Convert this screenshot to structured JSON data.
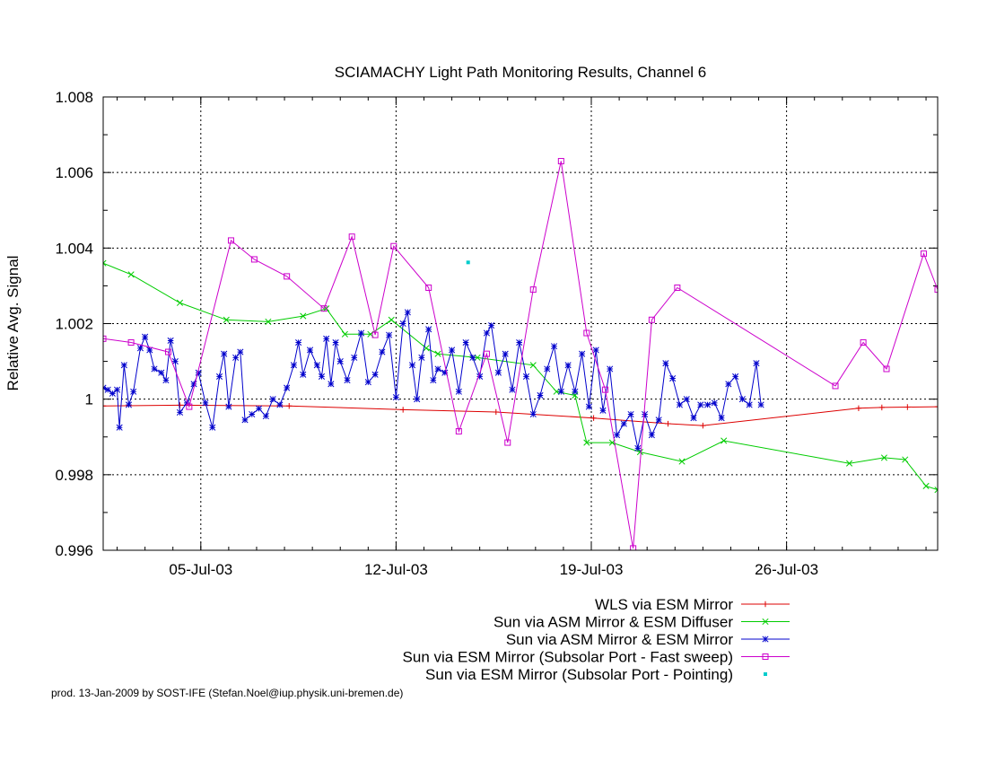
{
  "chart_data": {
    "type": "line",
    "title": "SCIAMACHY Light Path Monitoring Results, Channel 6",
    "xlabel": "",
    "ylabel": "Relative Avg. Signal",
    "x_unit": "date",
    "xlim": [
      "2003-07-01T12:00",
      "2003-07-31T10:00"
    ],
    "ylim": [
      0.996,
      1.008
    ],
    "x_ticks": [
      {
        "date": "2003-07-05",
        "label": "05-Jul-03"
      },
      {
        "date": "2003-07-12",
        "label": "12-Jul-03"
      },
      {
        "date": "2003-07-19",
        "label": "19-Jul-03"
      },
      {
        "date": "2003-07-26",
        "label": "26-Jul-03"
      }
    ],
    "y_ticks": [
      {
        "value": 0.996,
        "label": "0.996"
      },
      {
        "value": 0.998,
        "label": "0.998"
      },
      {
        "value": 1.0,
        "label": "1"
      },
      {
        "value": 1.002,
        "label": "1.002"
      },
      {
        "value": 1.004,
        "label": "1.004"
      },
      {
        "value": 1.006,
        "label": "1.006"
      },
      {
        "value": 1.008,
        "label": "1.008"
      }
    ],
    "grid": true,
    "legend_position": "below plot, right-aligned",
    "series": [
      {
        "name": "WLS via ESM Mirror",
        "color": "#dd0000",
        "marker": "plus",
        "points": [
          [
            "2003-07-01T12:00",
            0.99982
          ],
          [
            "2003-07-04T06:00",
            0.99984
          ],
          [
            "2003-07-08T04:00",
            0.99982
          ],
          [
            "2003-07-12T06:00",
            0.99972
          ],
          [
            "2003-07-15T14:00",
            0.99966
          ],
          [
            "2003-07-19T02:00",
            0.9995
          ],
          [
            "2003-07-21T18:00",
            0.99935
          ],
          [
            "2003-07-23T00:00",
            0.9993
          ],
          [
            "2003-07-28T14:00",
            0.99976
          ],
          [
            "2003-07-29T10:00",
            0.99978
          ],
          [
            "2003-07-30T08:00",
            0.99979
          ],
          [
            "2003-07-31T10:00",
            0.9998
          ]
        ]
      },
      {
        "name": "Sun via ASM Mirror & ESM Diffuser",
        "color": "#00cc00",
        "marker": "x",
        "points": [
          [
            "2003-07-01T12:00",
            1.0036
          ],
          [
            "2003-07-02T12:00",
            1.0033
          ],
          [
            "2003-07-04T06:00",
            1.00255
          ],
          [
            "2003-07-05T22:00",
            1.0021
          ],
          [
            "2003-07-07T10:00",
            1.00205
          ],
          [
            "2003-07-08T16:00",
            1.0022
          ],
          [
            "2003-07-09T12:00",
            1.0024
          ],
          [
            "2003-07-10T04:00",
            1.00172
          ],
          [
            "2003-07-11T02:00",
            1.00172
          ],
          [
            "2003-07-11T20:00",
            1.0021
          ],
          [
            "2003-07-13T02:00",
            1.00135
          ],
          [
            "2003-07-13T12:00",
            1.0012
          ],
          [
            "2003-07-14T22:00",
            1.0011
          ],
          [
            "2003-07-16T22:00",
            1.0009
          ],
          [
            "2003-07-17T18:00",
            1.0002
          ],
          [
            "2003-07-18T10:00",
            1.0001
          ],
          [
            "2003-07-18T20:00",
            0.99885
          ],
          [
            "2003-07-19T18:00",
            0.99885
          ],
          [
            "2003-07-20T18:00",
            0.9986
          ],
          [
            "2003-07-22T06:00",
            0.99835
          ],
          [
            "2003-07-23T18:00",
            0.9989
          ],
          [
            "2003-07-28T06:00",
            0.9983
          ],
          [
            "2003-07-29T12:00",
            0.99845
          ],
          [
            "2003-07-30T06:00",
            0.9984
          ],
          [
            "2003-07-31T00:00",
            0.9977
          ],
          [
            "2003-07-31T10:00",
            0.9976
          ]
        ]
      },
      {
        "name": "Sun via ASM Mirror & ESM Mirror",
        "color": "#0000cc",
        "marker": "star",
        "points": [
          [
            "2003-07-01T12:00",
            1.0003
          ],
          [
            "2003-07-01T16:00",
            1.00025
          ],
          [
            "2003-07-01T20:00",
            1.00015
          ],
          [
            "2003-07-02T00:00",
            1.00025
          ],
          [
            "2003-07-02T02:00",
            0.99925
          ],
          [
            "2003-07-02T06:00",
            1.0009
          ],
          [
            "2003-07-02T10:00",
            0.99985
          ],
          [
            "2003-07-02T14:00",
            1.0002
          ],
          [
            "2003-07-02T20:00",
            1.00135
          ],
          [
            "2003-07-03T00:00",
            1.00165
          ],
          [
            "2003-07-03T04:00",
            1.0013
          ],
          [
            "2003-07-03T08:00",
            1.0008
          ],
          [
            "2003-07-03T14:00",
            1.0007
          ],
          [
            "2003-07-03T18:00",
            1.0005
          ],
          [
            "2003-07-03T22:00",
            1.00155
          ],
          [
            "2003-07-04T02:00",
            1.001
          ],
          [
            "2003-07-04T06:00",
            0.99965
          ],
          [
            "2003-07-04T12:00",
            0.9999
          ],
          [
            "2003-07-04T18:00",
            1.0004
          ],
          [
            "2003-07-04T22:00",
            1.0007
          ],
          [
            "2003-07-05T04:00",
            0.9999
          ],
          [
            "2003-07-05T10:00",
            0.99925
          ],
          [
            "2003-07-05T16:00",
            1.0006
          ],
          [
            "2003-07-05T20:00",
            1.0012
          ],
          [
            "2003-07-06T00:00",
            0.9998
          ],
          [
            "2003-07-06T06:00",
            1.0011
          ],
          [
            "2003-07-06T10:00",
            1.00125
          ],
          [
            "2003-07-06T14:00",
            0.99945
          ],
          [
            "2003-07-06T20:00",
            0.9996
          ],
          [
            "2003-07-07T02:00",
            0.99975
          ],
          [
            "2003-07-07T08:00",
            0.99955
          ],
          [
            "2003-07-07T14:00",
            1.0
          ],
          [
            "2003-07-07T20:00",
            0.99985
          ],
          [
            "2003-07-08T02:00",
            1.0003
          ],
          [
            "2003-07-08T08:00",
            1.0009
          ],
          [
            "2003-07-08T12:00",
            1.0015
          ],
          [
            "2003-07-08T16:00",
            1.00065
          ],
          [
            "2003-07-08T22:00",
            1.0013
          ],
          [
            "2003-07-09T04:00",
            1.0009
          ],
          [
            "2003-07-09T08:00",
            1.0006
          ],
          [
            "2003-07-09T12:00",
            1.0016
          ],
          [
            "2003-07-09T16:00",
            1.0004
          ],
          [
            "2003-07-09T20:00",
            1.0015
          ],
          [
            "2003-07-10T00:00",
            1.001
          ],
          [
            "2003-07-10T06:00",
            1.0005
          ],
          [
            "2003-07-10T12:00",
            1.0011
          ],
          [
            "2003-07-10T18:00",
            1.00175
          ],
          [
            "2003-07-11T00:00",
            1.00045
          ],
          [
            "2003-07-11T06:00",
            1.00065
          ],
          [
            "2003-07-11T12:00",
            1.00125
          ],
          [
            "2003-07-11T18:00",
            1.0017
          ],
          [
            "2003-07-12T00:00",
            1.00005
          ],
          [
            "2003-07-12T06:00",
            1.002
          ],
          [
            "2003-07-12T10:00",
            1.0023
          ],
          [
            "2003-07-12T14:00",
            1.0009
          ],
          [
            "2003-07-12T18:00",
            1.0
          ],
          [
            "2003-07-12T22:00",
            1.0011
          ],
          [
            "2003-07-13T04:00",
            1.00185
          ],
          [
            "2003-07-13T08:00",
            1.0005
          ],
          [
            "2003-07-13T12:00",
            1.0008
          ],
          [
            "2003-07-13T18:00",
            1.0007
          ],
          [
            "2003-07-14T00:00",
            1.0013
          ],
          [
            "2003-07-14T06:00",
            1.0002
          ],
          [
            "2003-07-14T12:00",
            1.0015
          ],
          [
            "2003-07-14T18:00",
            1.0011
          ],
          [
            "2003-07-15T00:00",
            1.0006
          ],
          [
            "2003-07-15T06:00",
            1.00175
          ],
          [
            "2003-07-15T10:00",
            1.00195
          ],
          [
            "2003-07-15T16:00",
            1.0007
          ],
          [
            "2003-07-15T22:00",
            1.0012
          ],
          [
            "2003-07-16T04:00",
            1.00025
          ],
          [
            "2003-07-16T10:00",
            1.0015
          ],
          [
            "2003-07-16T16:00",
            1.0006
          ],
          [
            "2003-07-16T22:00",
            0.9996
          ],
          [
            "2003-07-17T04:00",
            1.0001
          ],
          [
            "2003-07-17T10:00",
            1.0008
          ],
          [
            "2003-07-17T16:00",
            1.0014
          ],
          [
            "2003-07-17T22:00",
            1.0002
          ],
          [
            "2003-07-18T04:00",
            1.0009
          ],
          [
            "2003-07-18T10:00",
            1.0002
          ],
          [
            "2003-07-18T16:00",
            1.0012
          ],
          [
            "2003-07-18T22:00",
            0.9998
          ],
          [
            "2003-07-19T04:00",
            1.0013
          ],
          [
            "2003-07-19T10:00",
            0.9997
          ],
          [
            "2003-07-19T16:00",
            1.0008
          ],
          [
            "2003-07-19T22:00",
            0.99905
          ],
          [
            "2003-07-20T04:00",
            0.99935
          ],
          [
            "2003-07-20T10:00",
            0.9996
          ],
          [
            "2003-07-20T16:00",
            0.9987
          ],
          [
            "2003-07-20T22:00",
            0.9996
          ],
          [
            "2003-07-21T04:00",
            0.99905
          ],
          [
            "2003-07-21T10:00",
            0.99945
          ],
          [
            "2003-07-21T16:00",
            1.00095
          ],
          [
            "2003-07-21T22:00",
            1.00055
          ],
          [
            "2003-07-22T04:00",
            0.99985
          ],
          [
            "2003-07-22T10:00",
            1.0
          ],
          [
            "2003-07-22T16:00",
            0.9995
          ],
          [
            "2003-07-22T22:00",
            0.99985
          ],
          [
            "2003-07-23T04:00",
            0.99985
          ],
          [
            "2003-07-23T10:00",
            0.9999
          ],
          [
            "2003-07-23T16:00",
            0.9995
          ],
          [
            "2003-07-23T22:00",
            1.0004
          ],
          [
            "2003-07-24T04:00",
            1.0006
          ],
          [
            "2003-07-24T10:00",
            1.0
          ],
          [
            "2003-07-24T16:00",
            0.99985
          ],
          [
            "2003-07-24T22:00",
            1.00095
          ],
          [
            "2003-07-25T02:00",
            0.99985
          ]
        ]
      },
      {
        "name": "Sun via ESM Mirror (Subsolar Port - Fast sweep)",
        "color": "#cc00cc",
        "marker": "square",
        "points": [
          [
            "2003-07-01T12:00",
            1.0016
          ],
          [
            "2003-07-02T12:00",
            1.0015
          ],
          [
            "2003-07-03T20:00",
            1.00125
          ],
          [
            "2003-07-04T14:00",
            0.9998
          ],
          [
            "2003-07-06T02:00",
            1.0042
          ],
          [
            "2003-07-06T22:00",
            1.0037
          ],
          [
            "2003-07-08T02:00",
            1.00325
          ],
          [
            "2003-07-09T10:00",
            1.0024
          ],
          [
            "2003-07-10T10:00",
            1.0043
          ],
          [
            "2003-07-11T06:00",
            1.0017
          ],
          [
            "2003-07-11T22:00",
            1.00405
          ],
          [
            "2003-07-13T04:00",
            1.00295
          ],
          [
            "2003-07-14T06:00",
            0.99915
          ],
          [
            "2003-07-15T06:00",
            1.0012
          ],
          [
            "2003-07-16T00:00",
            0.99885
          ],
          [
            "2003-07-16T22:00",
            1.0029
          ],
          [
            "2003-07-17T22:00",
            1.0063
          ],
          [
            "2003-07-18T20:00",
            1.00175
          ],
          [
            "2003-07-19T12:00",
            1.00025
          ],
          [
            "2003-07-20T12:00",
            0.99605
          ],
          [
            "2003-07-21T04:00",
            1.0021
          ],
          [
            "2003-07-22T02:00",
            1.00295
          ],
          [
            "2003-07-27T18:00",
            1.00035
          ],
          [
            "2003-07-28T18:00",
            1.0015
          ],
          [
            "2003-07-29T14:00",
            1.0008
          ],
          [
            "2003-07-30T22:00",
            1.00385
          ],
          [
            "2003-07-31T10:00",
            1.0029
          ]
        ]
      },
      {
        "name": "Sun via ESM Mirror (Subsolar Port - Pointing)",
        "color": "#00cccc",
        "marker": "dot",
        "points": [
          [
            "2003-07-14T14:00",
            1.00362
          ]
        ]
      }
    ]
  },
  "footer": {
    "credit": "prod. 13-Jan-2009 by SOST-IFE (Stefan.Noel@iup.physik.uni-bremen.de)"
  }
}
